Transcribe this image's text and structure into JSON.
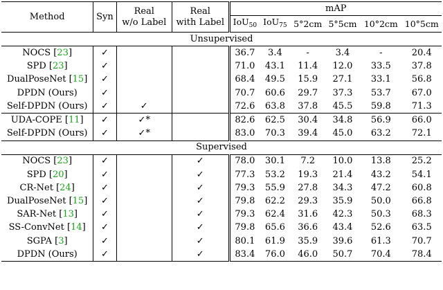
{
  "header": {
    "method": "Method",
    "syn": "Syn",
    "real_wo_label": [
      "Real",
      "w/o Label"
    ],
    "real_with_label": [
      "Real",
      "with Label"
    ],
    "map": "mAP",
    "metrics": [
      {
        "base": "IoU",
        "sub": "50"
      },
      {
        "base": "IoU",
        "sub": "75"
      },
      {
        "base": "5°2cm",
        "sub": ""
      },
      {
        "base": "5°5cm",
        "sub": ""
      },
      {
        "base": "10°2cm",
        "sub": ""
      },
      {
        "base": "10°5cm",
        "sub": ""
      }
    ]
  },
  "sections": {
    "unsupervised": "Unsupervised",
    "supervised": "Supervised"
  },
  "unsup_a": [
    {
      "name": "NOCS",
      "cite": "23",
      "syn": "✓",
      "rwo": "",
      "rwl": "",
      "vals": [
        "36.7",
        "3.4",
        "-",
        "3.4",
        "-",
        "20.4"
      ],
      "bold": []
    },
    {
      "name": "SPD",
      "cite": "23",
      "syn": "✓",
      "rwo": "",
      "rwl": "",
      "vals": [
        "71.0",
        "43.1",
        "11.4",
        "12.0",
        "33.5",
        "37.8"
      ],
      "bold": []
    },
    {
      "name": "DualPoseNet",
      "cite": "15",
      "syn": "✓",
      "rwo": "",
      "rwl": "",
      "vals": [
        "68.4",
        "49.5",
        "15.9",
        "27.1",
        "33.1",
        "56.8"
      ],
      "bold": []
    },
    {
      "name": "DPDN (Ours)",
      "cite": "",
      "syn": "✓",
      "rwo": "",
      "rwl": "",
      "vals": [
        "70.7",
        "60.6",
        "29.7",
        "37.3",
        "53.7",
        "67.0"
      ],
      "bold": []
    },
    {
      "name": "Self-DPDN (Ours)",
      "cite": "",
      "syn": "✓",
      "rwo": "✓",
      "rwl": "",
      "vals": [
        "72.6",
        "63.8",
        "37.8",
        "45.5",
        "59.8",
        "71.3"
      ],
      "bold": [
        0,
        1,
        2,
        3,
        4,
        5
      ]
    }
  ],
  "unsup_b": [
    {
      "name": "UDA-COPE",
      "cite": "11",
      "syn": "✓",
      "rwo": "✓*",
      "rwl": "",
      "vals": [
        "82.6",
        "62.5",
        "30.4",
        "34.8",
        "56.9",
        "66.0"
      ],
      "bold": []
    },
    {
      "name": "Self-DPDN (Ours)",
      "cite": "",
      "syn": "✓",
      "rwo": "✓*",
      "rwl": "",
      "vals": [
        "83.0",
        "70.3",
        "39.4",
        "45.0",
        "63.2",
        "72.1"
      ],
      "bold": [
        0,
        1,
        2,
        3,
        4,
        5
      ]
    }
  ],
  "sup": [
    {
      "name": "NOCS",
      "cite": "23",
      "syn": "✓",
      "rwo": "",
      "rwl": "✓",
      "vals": [
        "78.0",
        "30.1",
        "7.2",
        "10.0",
        "13.8",
        "25.2"
      ],
      "bold": []
    },
    {
      "name": "SPD",
      "cite": "20",
      "syn": "✓",
      "rwo": "",
      "rwl": "✓",
      "vals": [
        "77.3",
        "53.2",
        "19.3",
        "21.4",
        "43.2",
        "54.1"
      ],
      "bold": []
    },
    {
      "name": "CR-Net",
      "cite": "24",
      "syn": "✓",
      "rwo": "",
      "rwl": "✓",
      "vals": [
        "79.3",
        "55.9",
        "27.8",
        "34.3",
        "47.2",
        "60.8"
      ],
      "bold": []
    },
    {
      "name": "DualPoseNet",
      "cite": "15",
      "syn": "✓",
      "rwo": "",
      "rwl": "✓",
      "vals": [
        "79.8",
        "62.2",
        "29.3",
        "35.9",
        "50.0",
        "66.8"
      ],
      "bold": []
    },
    {
      "name": "SAR-Net",
      "cite": "13",
      "syn": "✓",
      "rwo": "",
      "rwl": "✓",
      "vals": [
        "79.3",
        "62.4",
        "31.6",
        "42.3",
        "50.3",
        "68.3"
      ],
      "bold": []
    },
    {
      "name": "SS-ConvNet",
      "cite": "14",
      "syn": "✓",
      "rwo": "",
      "rwl": "✓",
      "vals": [
        "79.8",
        "65.6",
        "36.6",
        "43.4",
        "52.6",
        "63.5"
      ],
      "bold": []
    },
    {
      "name": "SGPA",
      "cite": "3",
      "syn": "✓",
      "rwo": "",
      "rwl": "✓",
      "vals": [
        "80.1",
        "61.9",
        "35.9",
        "39.6",
        "61.3",
        "70.7"
      ],
      "bold": []
    },
    {
      "name": "DPDN (Ours)",
      "cite": "",
      "syn": "✓",
      "rwo": "",
      "rwl": "✓",
      "vals": [
        "83.4",
        "76.0",
        "46.0",
        "50.7",
        "70.4",
        "78.4"
      ],
      "bold": [
        0,
        1,
        2,
        3,
        4,
        5
      ]
    }
  ]
}
